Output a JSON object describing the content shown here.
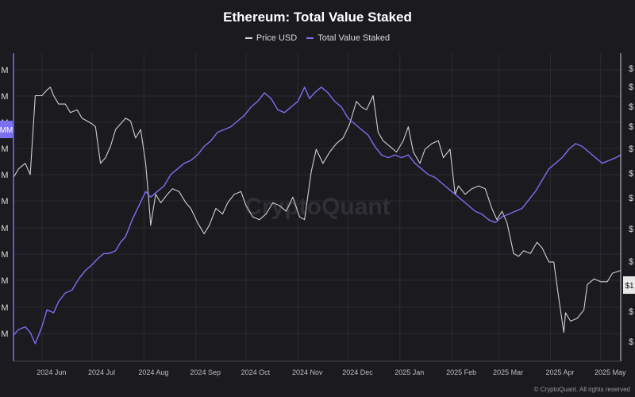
{
  "chart_data": {
    "type": "line",
    "title": "Ethereum: Total Value Staked",
    "legend_position": "top-center",
    "x_tick_labels": [
      "2024 Jun",
      "2024 Jul",
      "2024 Aug",
      "2024 Sep",
      "2024 Oct",
      "2024 Nov",
      "2024 Dec",
      "2025 Jan",
      "2025 Feb",
      "2025 Mar",
      "2025 Apr",
      "2025 May"
    ],
    "x_range": [
      "2024-05-15",
      "2025-05-13"
    ],
    "left_axis": {
      "tick_labels": [
        "M",
        "M",
        "M",
        "M",
        "M",
        "M",
        "M",
        "M",
        "M",
        "M",
        "M"
      ],
      "highlight_label": "MM"
    },
    "right_axis": {
      "tick_labels": [
        "$",
        "$",
        "$",
        "$",
        "$",
        "$",
        "$",
        "$",
        "$",
        "$",
        "$",
        "$"
      ],
      "highlight_label": "$1"
    },
    "grid": true,
    "series": [
      {
        "name": "Price USD",
        "color": "#d0d0d0",
        "points": [
          [
            "2024-05-15",
            0.61
          ],
          [
            "2024-05-18",
            0.64
          ],
          [
            "2024-05-22",
            0.66
          ],
          [
            "2024-05-25",
            0.62
          ],
          [
            "2024-05-28",
            0.9
          ],
          [
            "2024-06-01",
            0.9
          ],
          [
            "2024-06-04",
            0.92
          ],
          [
            "2024-06-06",
            0.93
          ],
          [
            "2024-06-08",
            0.9
          ],
          [
            "2024-06-11",
            0.87
          ],
          [
            "2024-06-15",
            0.87
          ],
          [
            "2024-06-18",
            0.84
          ],
          [
            "2024-06-22",
            0.85
          ],
          [
            "2024-06-25",
            0.82
          ],
          [
            "2024-06-28",
            0.81
          ],
          [
            "2024-07-01",
            0.8
          ],
          [
            "2024-07-03",
            0.79
          ],
          [
            "2024-07-06",
            0.66
          ],
          [
            "2024-07-09",
            0.68
          ],
          [
            "2024-07-12",
            0.72
          ],
          [
            "2024-07-15",
            0.78
          ],
          [
            "2024-07-18",
            0.8
          ],
          [
            "2024-07-21",
            0.82
          ],
          [
            "2024-07-24",
            0.81
          ],
          [
            "2024-07-27",
            0.75
          ],
          [
            "2024-07-30",
            0.78
          ],
          [
            "2024-08-02",
            0.66
          ],
          [
            "2024-08-04",
            0.52
          ],
          [
            "2024-08-05",
            0.44
          ],
          [
            "2024-08-08",
            0.55
          ],
          [
            "2024-08-11",
            0.52
          ],
          [
            "2024-08-15",
            0.55
          ],
          [
            "2024-08-18",
            0.57
          ],
          [
            "2024-08-22",
            0.56
          ],
          [
            "2024-08-26",
            0.52
          ],
          [
            "2024-08-29",
            0.5
          ],
          [
            "2024-09-02",
            0.45
          ],
          [
            "2024-09-06",
            0.41
          ],
          [
            "2024-09-09",
            0.44
          ],
          [
            "2024-09-13",
            0.5
          ],
          [
            "2024-09-17",
            0.48
          ],
          [
            "2024-09-20",
            0.52
          ],
          [
            "2024-09-24",
            0.55
          ],
          [
            "2024-09-28",
            0.56
          ],
          [
            "2024-10-01",
            0.51
          ],
          [
            "2024-10-05",
            0.47
          ],
          [
            "2024-10-09",
            0.46
          ],
          [
            "2024-10-13",
            0.48
          ],
          [
            "2024-10-17",
            0.52
          ],
          [
            "2024-10-21",
            0.51
          ],
          [
            "2024-10-25",
            0.49
          ],
          [
            "2024-10-29",
            0.54
          ],
          [
            "2024-11-02",
            0.47
          ],
          [
            "2024-11-05",
            0.46
          ],
          [
            "2024-11-09",
            0.63
          ],
          [
            "2024-11-12",
            0.71
          ],
          [
            "2024-11-16",
            0.66
          ],
          [
            "2024-11-20",
            0.7
          ],
          [
            "2024-11-24",
            0.73
          ],
          [
            "2024-11-28",
            0.75
          ],
          [
            "2024-12-02",
            0.8
          ],
          [
            "2024-12-06",
            0.88
          ],
          [
            "2024-12-09",
            0.86
          ],
          [
            "2024-12-12",
            0.85
          ],
          [
            "2024-12-16",
            0.9
          ],
          [
            "2024-12-19",
            0.77
          ],
          [
            "2024-12-22",
            0.74
          ],
          [
            "2024-12-26",
            0.72
          ],
          [
            "2024-12-30",
            0.7
          ],
          [
            "2025-01-03",
            0.74
          ],
          [
            "2025-01-06",
            0.79
          ],
          [
            "2025-01-09",
            0.7
          ],
          [
            "2025-01-13",
            0.66
          ],
          [
            "2025-01-16",
            0.71
          ],
          [
            "2025-01-20",
            0.73
          ],
          [
            "2025-01-24",
            0.74
          ],
          [
            "2025-01-27",
            0.68
          ],
          [
            "2025-01-31",
            0.71
          ],
          [
            "2025-02-03",
            0.55
          ],
          [
            "2025-02-05",
            0.58
          ],
          [
            "2025-02-09",
            0.55
          ],
          [
            "2025-02-13",
            0.57
          ],
          [
            "2025-02-17",
            0.58
          ],
          [
            "2025-02-21",
            0.57
          ],
          [
            "2025-02-25",
            0.5
          ],
          [
            "2025-02-28",
            0.46
          ],
          [
            "2025-03-03",
            0.49
          ],
          [
            "2025-03-06",
            0.45
          ],
          [
            "2025-03-10",
            0.34
          ],
          [
            "2025-03-13",
            0.33
          ],
          [
            "2025-03-16",
            0.35
          ],
          [
            "2025-03-20",
            0.34
          ],
          [
            "2025-03-24",
            0.38
          ],
          [
            "2025-03-27",
            0.36
          ],
          [
            "2025-03-31",
            0.31
          ],
          [
            "2025-04-03",
            0.31
          ],
          [
            "2025-04-06",
            0.18
          ],
          [
            "2025-04-09",
            0.06
          ],
          [
            "2025-04-10",
            0.13
          ],
          [
            "2025-04-13",
            0.1
          ],
          [
            "2025-04-17",
            0.11
          ],
          [
            "2025-04-21",
            0.14
          ],
          [
            "2025-04-23",
            0.23
          ],
          [
            "2025-04-27",
            0.25
          ],
          [
            "2025-05-01",
            0.24
          ],
          [
            "2025-05-05",
            0.24
          ],
          [
            "2025-05-08",
            0.27
          ],
          [
            "2025-05-13",
            0.28
          ]
        ]
      },
      {
        "name": "Total Value Staked",
        "color": "#7b6ff2",
        "points": [
          [
            "2024-05-15",
            0.05
          ],
          [
            "2024-05-18",
            0.07
          ],
          [
            "2024-05-22",
            0.08
          ],
          [
            "2024-05-25",
            0.06
          ],
          [
            "2024-05-28",
            0.02
          ],
          [
            "2024-06-01",
            0.08
          ],
          [
            "2024-06-04",
            0.14
          ],
          [
            "2024-06-08",
            0.13
          ],
          [
            "2024-06-11",
            0.17
          ],
          [
            "2024-06-15",
            0.2
          ],
          [
            "2024-06-19",
            0.21
          ],
          [
            "2024-06-23",
            0.25
          ],
          [
            "2024-06-27",
            0.28
          ],
          [
            "2024-07-01",
            0.3
          ],
          [
            "2024-07-04",
            0.32
          ],
          [
            "2024-07-08",
            0.34
          ],
          [
            "2024-07-11",
            0.34
          ],
          [
            "2024-07-15",
            0.35
          ],
          [
            "2024-07-18",
            0.38
          ],
          [
            "2024-07-21",
            0.4
          ],
          [
            "2024-07-25",
            0.46
          ],
          [
            "2024-07-29",
            0.51
          ],
          [
            "2024-08-02",
            0.56
          ],
          [
            "2024-08-05",
            0.54
          ],
          [
            "2024-08-09",
            0.56
          ],
          [
            "2024-08-13",
            0.58
          ],
          [
            "2024-08-17",
            0.62
          ],
          [
            "2024-08-21",
            0.64
          ],
          [
            "2024-08-25",
            0.66
          ],
          [
            "2024-08-29",
            0.67
          ],
          [
            "2024-09-02",
            0.69
          ],
          [
            "2024-09-06",
            0.72
          ],
          [
            "2024-09-10",
            0.74
          ],
          [
            "2024-09-14",
            0.77
          ],
          [
            "2024-09-18",
            0.78
          ],
          [
            "2024-09-22",
            0.79
          ],
          [
            "2024-09-26",
            0.81
          ],
          [
            "2024-09-30",
            0.83
          ],
          [
            "2024-10-04",
            0.86
          ],
          [
            "2024-10-08",
            0.88
          ],
          [
            "2024-10-12",
            0.91
          ],
          [
            "2024-10-16",
            0.89
          ],
          [
            "2024-10-20",
            0.85
          ],
          [
            "2024-10-24",
            0.84
          ],
          [
            "2024-10-28",
            0.86
          ],
          [
            "2024-11-01",
            0.88
          ],
          [
            "2024-11-05",
            0.93
          ],
          [
            "2024-11-08",
            0.89
          ],
          [
            "2024-11-11",
            0.91
          ],
          [
            "2024-11-15",
            0.93
          ],
          [
            "2024-11-19",
            0.91
          ],
          [
            "2024-11-23",
            0.88
          ],
          [
            "2024-11-27",
            0.86
          ],
          [
            "2024-12-01",
            0.82
          ],
          [
            "2024-12-05",
            0.8
          ],
          [
            "2024-12-09",
            0.78
          ],
          [
            "2024-12-13",
            0.76
          ],
          [
            "2024-12-17",
            0.72
          ],
          [
            "2024-12-21",
            0.69
          ],
          [
            "2024-12-25",
            0.68
          ],
          [
            "2024-12-29",
            0.69
          ],
          [
            "2025-01-02",
            0.68
          ],
          [
            "2025-01-06",
            0.69
          ],
          [
            "2025-01-10",
            0.66
          ],
          [
            "2025-01-14",
            0.64
          ],
          [
            "2025-01-18",
            0.62
          ],
          [
            "2025-01-22",
            0.61
          ],
          [
            "2025-01-26",
            0.59
          ],
          [
            "2025-01-30",
            0.57
          ],
          [
            "2025-02-03",
            0.55
          ],
          [
            "2025-02-07",
            0.53
          ],
          [
            "2025-02-11",
            0.51
          ],
          [
            "2025-02-15",
            0.49
          ],
          [
            "2025-02-19",
            0.48
          ],
          [
            "2025-02-23",
            0.46
          ],
          [
            "2025-02-27",
            0.45
          ],
          [
            "2025-03-03",
            0.47
          ],
          [
            "2025-03-07",
            0.48
          ],
          [
            "2025-03-11",
            0.49
          ],
          [
            "2025-03-15",
            0.5
          ],
          [
            "2025-03-19",
            0.53
          ],
          [
            "2025-03-23",
            0.56
          ],
          [
            "2025-03-27",
            0.6
          ],
          [
            "2025-03-31",
            0.64
          ],
          [
            "2025-04-04",
            0.66
          ],
          [
            "2025-04-08",
            0.68
          ],
          [
            "2025-04-12",
            0.71
          ],
          [
            "2025-04-16",
            0.73
          ],
          [
            "2025-04-20",
            0.72
          ],
          [
            "2025-04-24",
            0.7
          ],
          [
            "2025-04-28",
            0.68
          ],
          [
            "2025-05-02",
            0.66
          ],
          [
            "2025-05-06",
            0.67
          ],
          [
            "2025-05-10",
            0.68
          ],
          [
            "2025-05-13",
            0.69
          ]
        ]
      }
    ]
  },
  "watermark": "CryptoQuant",
  "credit": "© CryptoQuant. All rights reserved"
}
